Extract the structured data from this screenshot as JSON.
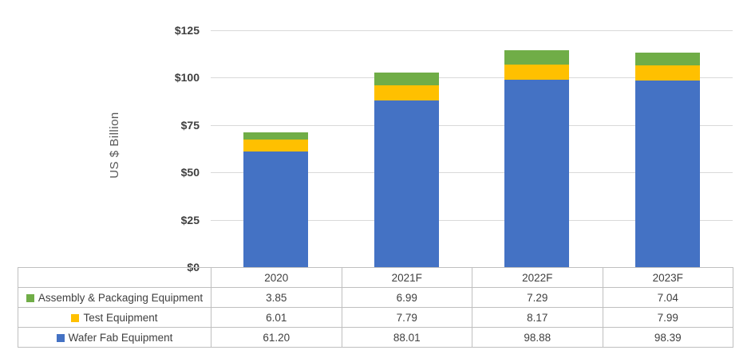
{
  "chart_data": {
    "type": "bar",
    "stacked": true,
    "ylabel": "US $ Billion",
    "ylim": [
      0,
      125
    ],
    "yticks": [
      {
        "label": "$0",
        "value": 0
      },
      {
        "label": "$25",
        "value": 25
      },
      {
        "label": "$50",
        "value": 50
      },
      {
        "label": "$75",
        "value": 75
      },
      {
        "label": "$100",
        "value": 100
      },
      {
        "label": "$125",
        "value": 125
      }
    ],
    "categories": [
      "2020",
      "2021F",
      "2022F",
      "2023F"
    ],
    "series": [
      {
        "name": "Wafer Fab Equipment",
        "color": "#4472C4",
        "values": [
          61.2,
          88.01,
          98.88,
          98.39
        ],
        "labels": [
          "61.20",
          "88.01",
          "98.88",
          "98.39"
        ]
      },
      {
        "name": "Test Equipment",
        "color": "#FFC000",
        "values": [
          6.01,
          7.79,
          8.17,
          7.99
        ],
        "labels": [
          "6.01",
          "7.79",
          "8.17",
          "7.99"
        ]
      },
      {
        "name": "Assembly & Packaging Equipment",
        "color": "#70AD47",
        "values": [
          3.85,
          6.99,
          7.29,
          7.04
        ],
        "labels": [
          "3.85",
          "6.99",
          "7.29",
          "7.04"
        ]
      }
    ],
    "series_stack_order": "bottom-to-top",
    "table_row_order_top_to_bottom": [
      "Assembly & Packaging Equipment",
      "Test Equipment",
      "Wafer Fab Equipment"
    ],
    "grid": true,
    "legend_position": "data-table-left-column",
    "colors": {
      "grid_line": "#D9D9D9",
      "table_border": "#BFBFBF",
      "text": "#404040",
      "axis_title_text": "#595959",
      "background": "#FFFFFF"
    }
  }
}
